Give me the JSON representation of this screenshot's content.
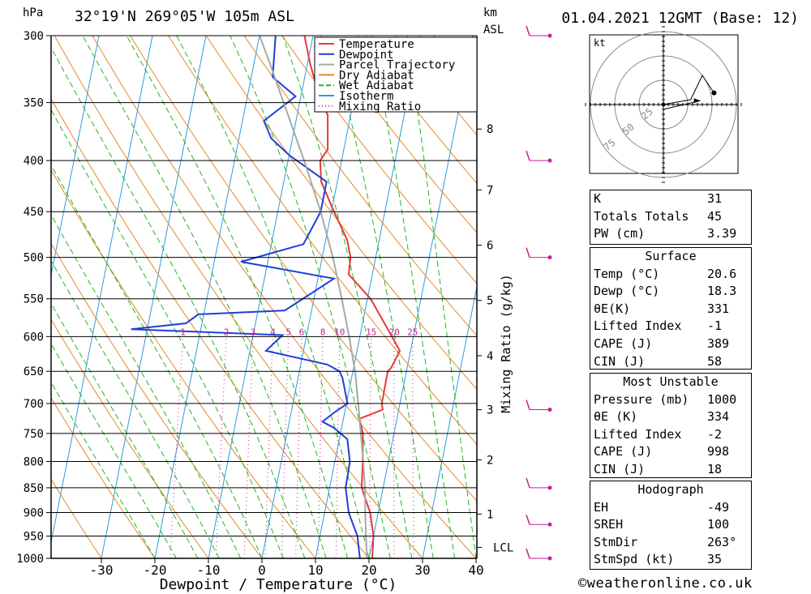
{
  "header": {
    "pressure_unit": "hPa",
    "location": "32°19'N  269°05'W  105m  ASL",
    "km_label": "km",
    "asl_label": "ASL",
    "datetime": "01.04.2021  12GMT  (Base: 12)"
  },
  "footer": {
    "copyright": "©weatheronline.co.uk"
  },
  "colors": {
    "temperature": "#e8383a",
    "dewpoint": "#1f3fd8",
    "parcel": "#a8a8a8",
    "dry_adiabat": "#e38a2a",
    "wet_adiabat": "#1fb61f",
    "isotherm": "#2a9be0",
    "mixing_ratio": "#d01890",
    "wind": "#c81e9e"
  },
  "chart_data": {
    "type": "line",
    "title": "32°19'N 269°05'W 105m ASL",
    "xlabel": "Dewpoint / Temperature (°C)",
    "ylabel": "hPa",
    "y_right_label": "Mixing Ratio (g/kg)",
    "xlim": [
      -40,
      40
    ],
    "ylim": [
      1000,
      300
    ],
    "x_ticks": [
      "-30",
      "-20",
      "-10",
      "0",
      "10",
      "20",
      "30",
      "40"
    ],
    "pressure_levels": [
      300,
      350,
      400,
      450,
      500,
      550,
      600,
      650,
      700,
      750,
      800,
      850,
      900,
      950,
      1000
    ],
    "km_ticks": [
      {
        "km": "1",
        "p": 903
      },
      {
        "km": "2",
        "p": 797
      },
      {
        "km": "3",
        "p": 710
      },
      {
        "km": "4",
        "p": 627
      },
      {
        "km": "5",
        "p": 552
      },
      {
        "km": "6",
        "p": 486
      },
      {
        "km": "7",
        "p": 428
      },
      {
        "km": "8",
        "p": 372
      }
    ],
    "lcl_label": "LCL",
    "lcl_pressure": 975,
    "mixing_ratio_labels": [
      "1",
      "2",
      "3",
      "4",
      "5",
      "6",
      "8",
      "10",
      "15",
      "20",
      "25"
    ],
    "legend": [
      "Temperature",
      "Dewpoint",
      "Parcel Trajectory",
      "Dry Adiabat",
      "Wet Adiabat",
      "Isotherm",
      "Mixing Ratio"
    ],
    "series": [
      {
        "name": "Temperature",
        "points": [
          [
            1000,
            20.6
          ],
          [
            950,
            20.0
          ],
          [
            900,
            18.5
          ],
          [
            850,
            16.0
          ],
          [
            800,
            15.2
          ],
          [
            750,
            14.2
          ],
          [
            725,
            13.0
          ],
          [
            710,
            17.0
          ],
          [
            700,
            16.6
          ],
          [
            650,
            16.5
          ],
          [
            645,
            17.0
          ],
          [
            620,
            18.0
          ],
          [
            600,
            16.0
          ],
          [
            550,
            10.6
          ],
          [
            520,
            5.6
          ],
          [
            500,
            5.3
          ],
          [
            480,
            4.0
          ],
          [
            450,
            0.5
          ],
          [
            420,
            -3.0
          ],
          [
            400,
            -4.0
          ],
          [
            390,
            -3.0
          ],
          [
            360,
            -4.3
          ],
          [
            350,
            -6.0
          ],
          [
            320,
            -9.5
          ],
          [
            300,
            -11.6
          ]
        ]
      },
      {
        "name": "Dewpoint",
        "points": [
          [
            1000,
            18.3
          ],
          [
            950,
            17.0
          ],
          [
            900,
            14.5
          ],
          [
            850,
            13.0
          ],
          [
            800,
            12.8
          ],
          [
            760,
            11.5
          ],
          [
            740,
            8.5
          ],
          [
            730,
            6.2
          ],
          [
            715,
            8.0
          ],
          [
            700,
            10.2
          ],
          [
            660,
            8.3
          ],
          [
            650,
            7.5
          ],
          [
            640,
            5.0
          ],
          [
            620,
            -7.0
          ],
          [
            598,
            -4.5
          ],
          [
            590,
            -33.0
          ],
          [
            582,
            -23.0
          ],
          [
            570,
            -21.0
          ],
          [
            565,
            -5.0
          ],
          [
            525,
            3.0
          ],
          [
            505,
            -15.0
          ],
          [
            485,
            -4.0
          ],
          [
            450,
            -2.0
          ],
          [
            420,
            -2.0
          ],
          [
            395,
            -10.0
          ],
          [
            380,
            -14.0
          ],
          [
            365,
            -16.0
          ],
          [
            345,
            -11.0
          ],
          [
            330,
            -16.0
          ],
          [
            300,
            -17.0
          ]
        ]
      },
      {
        "name": "Parcel Trajectory",
        "points": [
          [
            1000,
            19.6
          ],
          [
            950,
            18.6
          ],
          [
            900,
            17.6
          ],
          [
            850,
            16.6
          ],
          [
            800,
            15.3
          ],
          [
            750,
            13.8
          ],
          [
            700,
            12.2
          ],
          [
            650,
            10.4
          ],
          [
            600,
            8.0
          ],
          [
            550,
            5.2
          ],
          [
            500,
            2.0
          ],
          [
            450,
            -2.0
          ],
          [
            400,
            -7.0
          ],
          [
            350,
            -13.0
          ],
          [
            320,
            -17.0
          ],
          [
            300,
            -20.0
          ]
        ]
      }
    ],
    "wind_barbs": [
      {
        "p": 300,
        "dir": 263,
        "speed_kt": "35"
      },
      {
        "p": 400,
        "dir": 263,
        "speed_kt": "35"
      },
      {
        "p": 500,
        "dir": 263,
        "speed_kt": "30"
      },
      {
        "p": 710,
        "dir": 263,
        "speed_kt": "45"
      },
      {
        "p": 850,
        "dir": 263,
        "speed_kt": "30"
      },
      {
        "p": 925,
        "dir": 263,
        "speed_kt": "25"
      },
      {
        "p": 1000,
        "dir": 200,
        "speed_kt": "10"
      }
    ],
    "hodograph": {
      "unit_label": "kt",
      "ring_labels": [
        "25",
        "50",
        "75"
      ],
      "trace_kt": [
        [
          0,
          0
        ],
        [
          28,
          5
        ],
        [
          40,
          30
        ],
        [
          52,
          12
        ]
      ],
      "storm_motion_kt": [
        [
          0,
          -5
        ],
        [
          38,
          4
        ]
      ]
    }
  },
  "indices": {
    "rows": [
      {
        "label": "K",
        "value": "31"
      },
      {
        "label": "Totals Totals",
        "value": "45"
      },
      {
        "label": "PW (cm)",
        "value": "3.39"
      }
    ]
  },
  "surface": {
    "title": "Surface",
    "rows": [
      {
        "label": "Temp (°C)",
        "value": "20.6"
      },
      {
        "label": "Dewp (°C)",
        "value": "18.3"
      },
      {
        "label": "θE(K)",
        "value": "331"
      },
      {
        "label": "Lifted Index",
        "value": "-1"
      },
      {
        "label": "CAPE (J)",
        "value": "389"
      },
      {
        "label": "CIN (J)",
        "value": "58"
      }
    ]
  },
  "most_unstable": {
    "title": "Most Unstable",
    "rows": [
      {
        "label": "Pressure (mb)",
        "value": "1000"
      },
      {
        "label": "θE (K)",
        "value": "334"
      },
      {
        "label": "Lifted Index",
        "value": "-2"
      },
      {
        "label": "CAPE (J)",
        "value": "998"
      },
      {
        "label": "CIN (J)",
        "value": "18"
      }
    ]
  },
  "hodograph_box": {
    "title": "Hodograph",
    "rows": [
      {
        "label": "EH",
        "value": "-49"
      },
      {
        "label": "SREH",
        "value": "100"
      },
      {
        "label": "StmDir",
        "value": "263°"
      },
      {
        "label": "StmSpd (kt)",
        "value": "35"
      }
    ]
  }
}
